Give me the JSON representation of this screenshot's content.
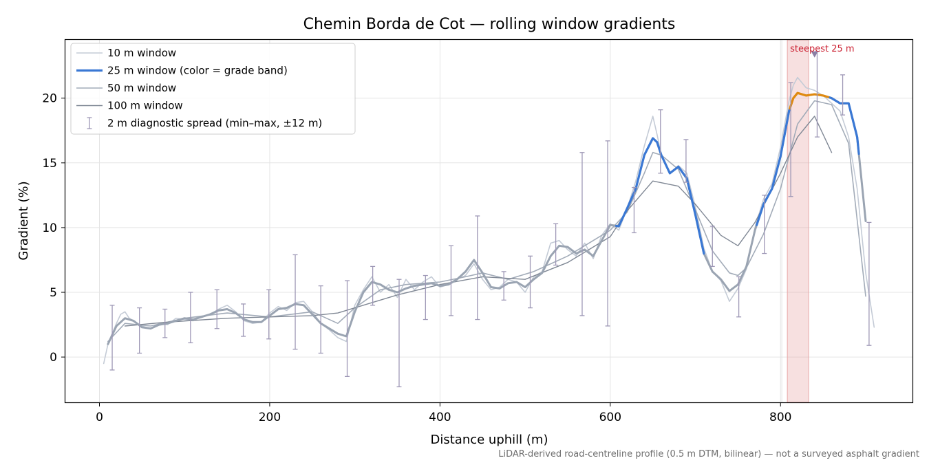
{
  "chart_data": {
    "type": "line",
    "title": "Chemin Borda de Cot — rolling window gradients",
    "xlabel": "Distance uphill (m)",
    "ylabel": "Gradient (%)",
    "footnote": "LiDAR-derived road-centreline profile (0.5 m DTM, bilinear) — not a surveyed asphalt gradient",
    "xlim": [
      -40,
      955
    ],
    "ylim": [
      -3.5,
      24.5
    ],
    "x_ticks": [
      0,
      200,
      400,
      600,
      800
    ],
    "y_ticks": [
      0,
      5,
      10,
      15,
      20
    ],
    "grid": true,
    "legend_position": "top-left",
    "colors": {
      "w10": "#c4cbd6",
      "w25_base": "#9aa4b2",
      "w25_band_high": "#3a78d4",
      "w25_band_steep": "#e08a10",
      "w50": "#a2abb8",
      "w100": "#7f8794",
      "errorbar": "#9e98b6",
      "highlight": "#e8a7a7",
      "marker": "#8b7da3",
      "annotation": "#cc2233"
    },
    "legend": [
      {
        "label": "10 m window",
        "style": "w10"
      },
      {
        "label": "25 m window (color = grade band)",
        "style": "w25"
      },
      {
        "label": "50 m window",
        "style": "w50"
      },
      {
        "label": "100 m window",
        "style": "w100"
      },
      {
        "label": "2 m diagnostic spread (min–max, ±12 m)",
        "style": "errorbar"
      }
    ],
    "steepest": {
      "label": "steepest 25 m",
      "x": 840,
      "y": 23.4,
      "span": [
        808,
        833
      ]
    },
    "series": [
      {
        "name": "10 m window",
        "style": "w10",
        "x": [
          5,
          10,
          15,
          20,
          25,
          30,
          35,
          40,
          50,
          60,
          70,
          80,
          90,
          100,
          110,
          120,
          130,
          140,
          150,
          160,
          170,
          180,
          190,
          200,
          210,
          220,
          230,
          240,
          250,
          260,
          270,
          280,
          290,
          300,
          310,
          320,
          330,
          340,
          350,
          360,
          370,
          380,
          390,
          400,
          410,
          420,
          430,
          440,
          450,
          460,
          470,
          480,
          490,
          500,
          510,
          520,
          530,
          540,
          550,
          560,
          570,
          580,
          590,
          600,
          610,
          620,
          630,
          640,
          650,
          655,
          660,
          670,
          680,
          690,
          700,
          710,
          720,
          730,
          740,
          750,
          760,
          770,
          780,
          790,
          800,
          810,
          815,
          820,
          830,
          840,
          850,
          860,
          870,
          880,
          890,
          900,
          910
        ],
        "y": [
          -0.5,
          1.0,
          1.8,
          2.6,
          3.3,
          3.5,
          3.0,
          2.8,
          2.4,
          2.2,
          2.6,
          2.5,
          3.0,
          2.9,
          2.8,
          3.1,
          3.3,
          3.7,
          4.0,
          3.5,
          2.8,
          2.6,
          2.7,
          3.4,
          3.9,
          3.6,
          4.2,
          4.3,
          3.5,
          2.6,
          2.1,
          1.5,
          1.2,
          4.0,
          5.2,
          6.2,
          5.0,
          5.6,
          4.6,
          6.0,
          5.2,
          5.8,
          6.2,
          5.4,
          5.6,
          6.0,
          6.3,
          7.2,
          6.0,
          5.2,
          5.4,
          6.0,
          5.8,
          5.0,
          6.2,
          6.6,
          8.8,
          9.0,
          8.3,
          7.8,
          8.8,
          7.6,
          9.4,
          10.3,
          9.8,
          11.5,
          13.6,
          16.3,
          18.6,
          17.2,
          15.6,
          14.2,
          14.8,
          14.2,
          11.6,
          8.4,
          6.6,
          5.9,
          4.3,
          5.3,
          6.8,
          10.0,
          12.2,
          13.4,
          16.2,
          19.8,
          21.0,
          21.6,
          20.8,
          20.6,
          20.2,
          19.6,
          19.0,
          17.0,
          13.0,
          6.5,
          2.3
        ]
      },
      {
        "name": "25 m window (color = grade band)",
        "style": "w25",
        "x": [
          10,
          20,
          30,
          40,
          50,
          60,
          70,
          80,
          90,
          100,
          110,
          120,
          130,
          140,
          150,
          160,
          170,
          180,
          190,
          200,
          210,
          220,
          230,
          240,
          250,
          260,
          270,
          280,
          290,
          300,
          310,
          320,
          330,
          340,
          350,
          360,
          370,
          380,
          390,
          400,
          410,
          420,
          430,
          440,
          450,
          460,
          470,
          480,
          490,
          500,
          510,
          520,
          530,
          540,
          550,
          560,
          570,
          580,
          590,
          600,
          610,
          620,
          630,
          640,
          650,
          655,
          660,
          670,
          680,
          690,
          700,
          710,
          720,
          730,
          740,
          750,
          760,
          770,
          780,
          790,
          800,
          810,
          815,
          820,
          830,
          840,
          850,
          860,
          870,
          880,
          890,
          900
        ],
        "y": [
          1.0,
          2.4,
          3.0,
          2.8,
          2.3,
          2.2,
          2.5,
          2.6,
          2.8,
          3.0,
          2.9,
          3.1,
          3.3,
          3.6,
          3.7,
          3.4,
          2.9,
          2.7,
          2.7,
          3.2,
          3.7,
          3.8,
          4.1,
          4.0,
          3.3,
          2.6,
          2.2,
          1.8,
          1.6,
          3.5,
          5.0,
          5.8,
          5.6,
          5.2,
          5.0,
          5.3,
          5.5,
          5.6,
          5.7,
          5.5,
          5.6,
          6.0,
          6.6,
          7.5,
          6.5,
          5.4,
          5.3,
          5.7,
          5.8,
          5.4,
          6.0,
          6.5,
          7.8,
          8.6,
          8.5,
          8.0,
          8.3,
          7.8,
          9.0,
          10.2,
          10.1,
          11.5,
          13.0,
          15.6,
          16.9,
          16.6,
          15.6,
          14.2,
          14.7,
          13.8,
          11.0,
          8.0,
          6.6,
          6.0,
          5.1,
          5.6,
          7.0,
          9.8,
          11.8,
          13.0,
          15.5,
          19.0,
          20.0,
          20.4,
          20.2,
          20.3,
          20.2,
          20.0,
          19.6,
          19.6,
          17.0,
          10.5
        ]
      },
      {
        "name": "50 m window",
        "style": "w50",
        "x": [
          10,
          30,
          60,
          100,
          150,
          200,
          250,
          280,
          300,
          330,
          360,
          400,
          430,
          450,
          480,
          510,
          550,
          600,
          620,
          640,
          650,
          660,
          680,
          700,
          720,
          740,
          750,
          760,
          780,
          800,
          820,
          840,
          860,
          880,
          900
        ],
        "y": [
          1.2,
          2.6,
          2.4,
          3.0,
          3.4,
          3.1,
          3.5,
          2.6,
          3.8,
          5.2,
          5.6,
          5.8,
          6.2,
          6.5,
          6.0,
          6.6,
          7.8,
          9.8,
          11.2,
          14.2,
          15.8,
          15.6,
          14.5,
          11.4,
          8.2,
          6.5,
          6.3,
          6.9,
          9.5,
          13.0,
          18.0,
          19.8,
          19.5,
          16.5,
          4.7
        ]
      },
      {
        "name": "100 m window",
        "style": "w100",
        "x": [
          30,
          80,
          150,
          200,
          250,
          280,
          300,
          350,
          400,
          450,
          500,
          550,
          600,
          620,
          650,
          680,
          700,
          730,
          750,
          770,
          800,
          820,
          840,
          860
        ],
        "y": [
          2.4,
          2.7,
          3.0,
          3.1,
          3.2,
          3.4,
          3.8,
          4.8,
          5.6,
          6.2,
          6.0,
          7.3,
          9.3,
          11.3,
          13.6,
          13.2,
          11.8,
          9.4,
          8.6,
          10.4,
          14.2,
          17.0,
          18.6,
          15.8
        ]
      }
    ],
    "colored_segments": [
      {
        "band": "w25_band_high",
        "x_range": [
          607,
          710
        ]
      },
      {
        "band": "w25_band_high",
        "x_range": [
          772,
          811
        ]
      },
      {
        "band": "w25_band_steep",
        "x_range": [
          811,
          858
        ]
      },
      {
        "band": "w25_band_high",
        "x_range": [
          858,
          892
        ]
      }
    ],
    "error_bars": [
      {
        "x": 15,
        "y": 1.5,
        "min": -1.0,
        "max": 4.0
      },
      {
        "x": 47,
        "y": 2.3,
        "min": 0.3,
        "max": 3.8
      },
      {
        "x": 77,
        "y": 2.7,
        "min": 1.5,
        "max": 3.7
      },
      {
        "x": 107,
        "y": 3.0,
        "min": 1.1,
        "max": 5.0
      },
      {
        "x": 138,
        "y": 3.6,
        "min": 2.2,
        "max": 5.2
      },
      {
        "x": 169,
        "y": 3.2,
        "min": 1.6,
        "max": 4.1
      },
      {
        "x": 199,
        "y": 3.0,
        "min": 1.4,
        "max": 5.2
      },
      {
        "x": 230,
        "y": 4.0,
        "min": 0.6,
        "max": 7.9
      },
      {
        "x": 260,
        "y": 2.8,
        "min": 0.3,
        "max": 5.5
      },
      {
        "x": 291,
        "y": 2.0,
        "min": -1.5,
        "max": 5.9
      },
      {
        "x": 321,
        "y": 5.6,
        "min": 4.0,
        "max": 7.0
      },
      {
        "x": 352,
        "y": 5.0,
        "min": -2.3,
        "max": 6.0
      },
      {
        "x": 383,
        "y": 5.6,
        "min": 2.9,
        "max": 6.3
      },
      {
        "x": 413,
        "y": 5.8,
        "min": 3.2,
        "max": 8.6
      },
      {
        "x": 444,
        "y": 7.5,
        "min": 2.9,
        "max": 10.9
      },
      {
        "x": 475,
        "y": 5.4,
        "min": 4.4,
        "max": 6.6
      },
      {
        "x": 506,
        "y": 5.5,
        "min": 3.8,
        "max": 7.8
      },
      {
        "x": 536,
        "y": 8.4,
        "min": 7.1,
        "max": 10.3
      },
      {
        "x": 567,
        "y": 8.2,
        "min": 3.2,
        "max": 15.8
      },
      {
        "x": 597,
        "y": 9.4,
        "min": 2.4,
        "max": 16.7
      },
      {
        "x": 628,
        "y": 11.6,
        "min": 9.6,
        "max": 13.1
      },
      {
        "x": 659,
        "y": 15.8,
        "min": 14.2,
        "max": 19.1
      },
      {
        "x": 689,
        "y": 14.6,
        "min": 13.5,
        "max": 16.8
      },
      {
        "x": 720,
        "y": 8.0,
        "min": 7.0,
        "max": 10.1
      },
      {
        "x": 751,
        "y": 5.0,
        "min": 3.1,
        "max": 6.2
      },
      {
        "x": 781,
        "y": 9.5,
        "min": 8.0,
        "max": 12.5
      },
      {
        "x": 812,
        "y": 18.0,
        "min": 12.4,
        "max": 21.2
      },
      {
        "x": 843,
        "y": 20.0,
        "min": 17.0,
        "max": 23.6
      },
      {
        "x": 873,
        "y": 19.6,
        "min": 18.7,
        "max": 21.8
      },
      {
        "x": 904,
        "y": 4.5,
        "min": 0.9,
        "max": 10.4
      }
    ]
  }
}
